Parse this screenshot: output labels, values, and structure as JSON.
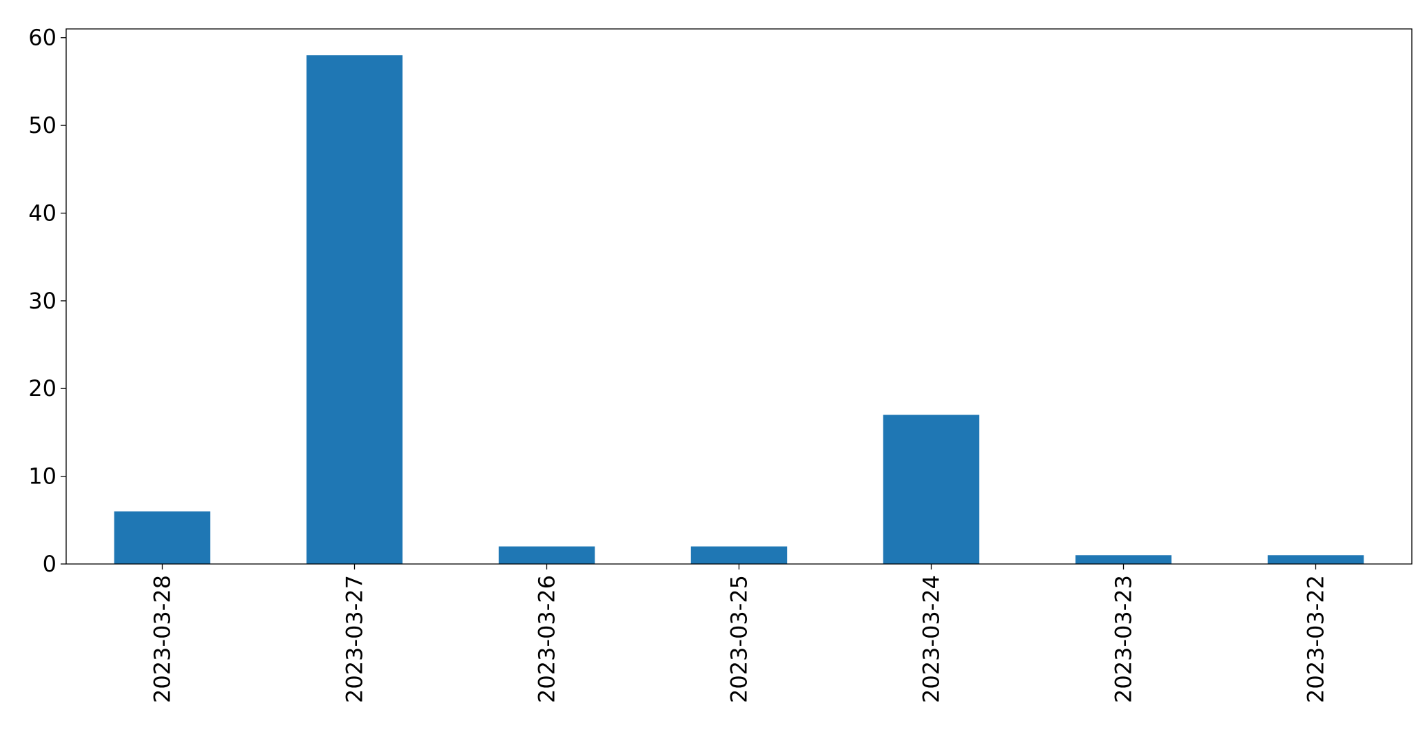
{
  "chart_data": {
    "type": "bar",
    "categories": [
      "2023-03-28",
      "2023-03-27",
      "2023-03-26",
      "2023-03-25",
      "2023-03-24",
      "2023-03-23",
      "2023-03-22"
    ],
    "values": [
      6,
      58,
      2,
      2,
      17,
      1,
      1
    ],
    "ylim": [
      0,
      61
    ],
    "yticks": [
      0,
      10,
      20,
      30,
      40,
      50,
      60
    ],
    "title": "",
    "xlabel": "",
    "ylabel": "",
    "grid": false,
    "legend": "none",
    "bar_color": "#1f77b4"
  }
}
